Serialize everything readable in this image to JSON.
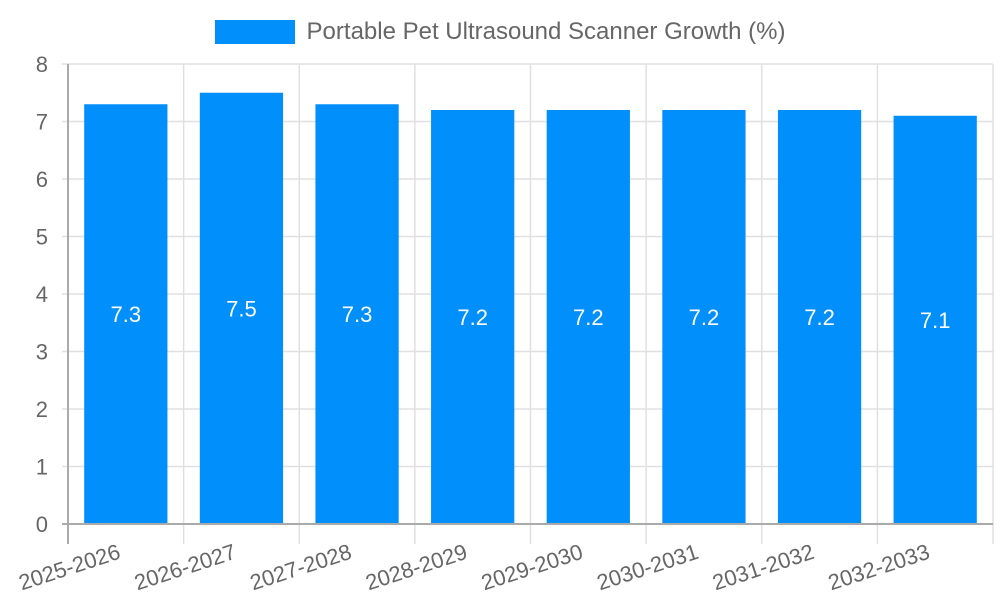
{
  "chart_data": {
    "type": "bar",
    "title": "",
    "categories": [
      "2025-2026",
      "2026-2027",
      "2027-2028",
      "2028-2029",
      "2029-2030",
      "2030-2031",
      "2031-2032",
      "2032-2033"
    ],
    "series": [
      {
        "name": "Portable Pet Ultrasound Scanner Growth (%)",
        "values": [
          7.3,
          7.5,
          7.3,
          7.2,
          7.2,
          7.2,
          7.2,
          7.1
        ],
        "color": "#008FFB"
      }
    ],
    "data_labels": [
      "7.3",
      "7.5",
      "7.3",
      "7.2",
      "7.2",
      "7.2",
      "7.2",
      "7.1"
    ],
    "xlabel": "",
    "ylabel": "",
    "ylim": [
      0,
      8
    ],
    "yticks": [
      0,
      1,
      2,
      3,
      4,
      5,
      6,
      7,
      8
    ],
    "grid": true,
    "legend_position": "top"
  },
  "legend": {
    "label": "Portable Pet Ultrasound Scanner Growth (%)",
    "color": "#008FFB"
  }
}
